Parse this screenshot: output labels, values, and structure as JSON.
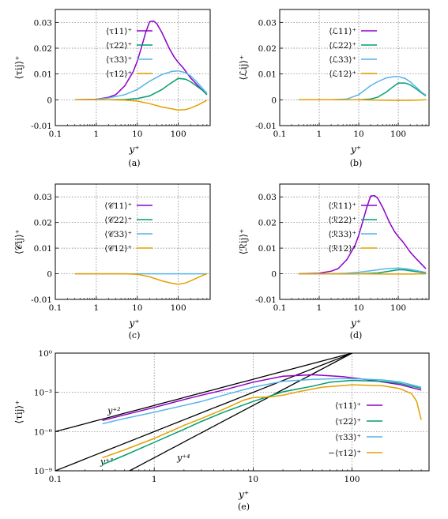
{
  "colors": {
    "c11": "#8e00c9",
    "c22": "#009e73",
    "c33": "#56b4e9",
    "c12": "#e69f00",
    "ref": "#000000"
  },
  "chart_data": [
    {
      "type": "line",
      "panel": "(a)",
      "xscale": "log",
      "xlim": [
        0.1,
        600
      ],
      "ylim": [
        -0.01,
        0.035
      ],
      "xticks": [
        "0.1",
        "1",
        "10",
        "100"
      ],
      "yticks": [
        "-0.01",
        "0",
        "0.01",
        "0.02",
        "0.03"
      ],
      "xlabel": "y⁺",
      "ylabel": "⟨τij⟩⁺",
      "series": [
        {
          "name": "⟨τ11⟩⁺",
          "x": [
            0.3,
            1,
            2,
            3,
            5,
            8,
            10,
            13,
            16,
            20,
            25,
            30,
            40,
            60,
            80,
            100,
            130,
            200,
            300,
            400,
            500
          ],
          "y": [
            0,
            0.0002,
            0.001,
            0.002,
            0.0055,
            0.011,
            0.015,
            0.021,
            0.026,
            0.0303,
            0.0305,
            0.0295,
            0.026,
            0.02,
            0.0165,
            0.0145,
            0.0125,
            0.0085,
            0.0055,
            0.0035,
            0.002
          ]
        },
        {
          "name": "⟨τ22⟩⁺",
          "x": [
            0.3,
            2,
            5,
            10,
            20,
            40,
            60,
            100,
            150,
            200,
            300,
            400,
            500
          ],
          "y": [
            0,
            0,
            0.0001,
            0.0005,
            0.0015,
            0.004,
            0.006,
            0.0083,
            0.008,
            0.007,
            0.005,
            0.0035,
            0.002
          ]
        },
        {
          "name": "⟨τ33⟩⁺",
          "x": [
            0.3,
            1,
            2,
            5,
            10,
            20,
            40,
            70,
            100,
            150,
            200,
            300,
            400,
            500
          ],
          "y": [
            0,
            0.0002,
            0.0007,
            0.002,
            0.004,
            0.0072,
            0.0098,
            0.011,
            0.0112,
            0.0105,
            0.0093,
            0.0065,
            0.0042,
            0.0025
          ]
        },
        {
          "name": "⟨τ12⟩⁺",
          "x": [
            0.3,
            2,
            5,
            10,
            20,
            40,
            70,
            100,
            150,
            200,
            300,
            400,
            500
          ],
          "y": [
            0,
            0,
            -0.0001,
            -0.0005,
            -0.0015,
            -0.0028,
            -0.0035,
            -0.004,
            -0.0038,
            -0.0032,
            -0.002,
            -0.001,
            -0.0002
          ]
        }
      ]
    },
    {
      "type": "line",
      "panel": "(b)",
      "xscale": "log",
      "xlim": [
        0.1,
        600
      ],
      "ylim": [
        -0.01,
        0.035
      ],
      "xticks": [
        "0.1",
        "1",
        "10",
        "100"
      ],
      "yticks": [
        "-0.01",
        "0",
        "0.01",
        "0.02",
        "0.03"
      ],
      "xlabel": "y⁺",
      "ylabel": "⟨ℒij⟩⁺",
      "series": [
        {
          "name": "⟨ℒ11⟩⁺",
          "x": [],
          "y": []
        },
        {
          "name": "⟨ℒ22⟩⁺",
          "x": [
            0.3,
            5,
            10,
            20,
            30,
            50,
            70,
            100,
            150,
            200,
            300,
            400,
            500
          ],
          "y": [
            0,
            0,
            0,
            0.0003,
            0.001,
            0.003,
            0.0048,
            0.0065,
            0.0065,
            0.0058,
            0.004,
            0.0025,
            0.0015
          ]
        },
        {
          "name": "⟨ℒ33⟩⁺",
          "x": [
            0.3,
            2,
            5,
            10,
            20,
            30,
            50,
            80,
            100,
            150,
            200,
            300,
            400,
            500
          ],
          "y": [
            0,
            0,
            0.0003,
            0.002,
            0.0055,
            0.007,
            0.0085,
            0.009,
            0.009,
            0.0082,
            0.007,
            0.0045,
            0.0028,
            0.0018
          ]
        },
        {
          "name": "⟨ℒ12⟩⁺",
          "x": [
            0.3,
            10,
            30,
            60,
            100,
            200,
            300,
            500
          ],
          "y": [
            0,
            0,
            -0.0001,
            -0.0002,
            -0.0002,
            -0.0002,
            -0.0001,
            0
          ]
        }
      ]
    },
    {
      "type": "line",
      "panel": "(c)",
      "xscale": "log",
      "xlim": [
        0.1,
        600
      ],
      "ylim": [
        -0.01,
        0.035
      ],
      "xticks": [
        "0.1",
        "1",
        "10",
        "100"
      ],
      "yticks": [
        "-0.01",
        "0",
        "0.01",
        "0.02",
        "0.03"
      ],
      "xlabel": "y⁺",
      "ylabel": "⟨𝒞ij⟩⁺",
      "series": [
        {
          "name": "⟨𝒞11⟩⁺",
          "x": [],
          "y": []
        },
        {
          "name": "⟨𝒞22⟩⁺",
          "x": [],
          "y": []
        },
        {
          "name": "⟨𝒞33⟩⁺",
          "x": [
            0.3,
            1,
            10,
            100,
            500
          ],
          "y": [
            0,
            0,
            0,
            0,
            0
          ]
        },
        {
          "name": "⟨𝒞12⟩⁺",
          "x": [
            0.3,
            5,
            10,
            20,
            40,
            70,
            100,
            150,
            200,
            300,
            400,
            500
          ],
          "y": [
            0,
            0,
            -0.0002,
            -0.0012,
            -0.0028,
            -0.0037,
            -0.0041,
            -0.0036,
            -0.0028,
            -0.0015,
            -0.0006,
            0
          ]
        }
      ]
    },
    {
      "type": "line",
      "panel": "(d)",
      "xscale": "log",
      "xlim": [
        0.1,
        600
      ],
      "ylim": [
        -0.01,
        0.035
      ],
      "xticks": [
        "0.1",
        "1",
        "10",
        "100"
      ],
      "yticks": [
        "-0.01",
        "0",
        "0.01",
        "0.02",
        "0.03"
      ],
      "xlabel": "y⁺",
      "ylabel": "⟨ℛij⟩⁺",
      "series": [
        {
          "name": "⟨ℛ11⟩⁺",
          "x": [
            0.3,
            1,
            2,
            3,
            5,
            8,
            10,
            13,
            16,
            20,
            25,
            30,
            40,
            60,
            80,
            100,
            130,
            200,
            300,
            400,
            500
          ],
          "y": [
            0,
            0.0002,
            0.001,
            0.002,
            0.0055,
            0.011,
            0.015,
            0.021,
            0.026,
            0.0303,
            0.0305,
            0.0295,
            0.026,
            0.02,
            0.0165,
            0.0145,
            0.0125,
            0.0085,
            0.0055,
            0.0035,
            0.002
          ]
        },
        {
          "name": "⟨ℛ22⟩⁺",
          "x": [
            0.3,
            10,
            30,
            60,
            100,
            150,
            200,
            300,
            500
          ],
          "y": [
            0,
            0,
            0.0003,
            0.001,
            0.0016,
            0.0015,
            0.0012,
            0.0008,
            0.0003
          ]
        },
        {
          "name": "⟨ℛ33⟩⁺",
          "x": [
            0.3,
            2,
            5,
            10,
            20,
            50,
            100,
            150,
            200,
            300,
            500
          ],
          "y": [
            0,
            0,
            0.0002,
            0.0006,
            0.0012,
            0.002,
            0.0022,
            0.002,
            0.0017,
            0.0012,
            0.0005
          ]
        },
        {
          "name": "⟨ℛ12⟩⁺",
          "x": [
            0.3,
            10,
            50,
            100,
            200,
            500
          ],
          "y": [
            0,
            0,
            -0.0001,
            -0.0001,
            -0.0001,
            0
          ]
        }
      ]
    },
    {
      "type": "line",
      "panel": "(e)",
      "xscale": "log",
      "yscale": "log",
      "xlim": [
        0.1,
        600
      ],
      "ylim": [
        1e-09,
        1
      ],
      "xticks": [
        "0.1",
        "1",
        "10",
        "100"
      ],
      "yticks": [
        "10⁻⁹",
        "10⁻⁶",
        "10⁻³",
        "10⁰"
      ],
      "xlabel": "y⁺",
      "ylabel": "⟨τij⟩⁺",
      "annotations": [
        "y⁺²",
        "y⁺³",
        "y⁺⁴"
      ],
      "reference_lines": [
        {
          "label": "y⁺²",
          "k": 0.0001,
          "p": 2
        },
        {
          "label": "y⁺³",
          "k": 1e-06,
          "p": 3
        },
        {
          "label": "y⁺⁴",
          "k": 1e-08,
          "p": 4
        }
      ],
      "series": [
        {
          "name": "⟨τ11⟩⁺",
          "x": [
            0.3,
            0.5,
            1,
            2,
            3,
            5,
            10,
            20,
            40,
            80,
            150,
            300,
            500
          ],
          "y": [
            7e-06,
            1.9e-05,
            7e-05,
            0.00028,
            0.0006,
            0.0015,
            0.006,
            0.017,
            0.022,
            0.016,
            0.009,
            0.004,
            0.0015
          ]
        },
        {
          "name": "⟨τ22⟩⁺",
          "x": [
            0.3,
            0.5,
            1,
            2,
            3,
            5,
            10,
            20,
            40,
            60,
            100,
            200,
            300,
            500
          ],
          "y": [
            3e-09,
            1.5e-08,
            1.5e-07,
            1.5e-06,
            6e-06,
            3e-05,
            0.0002,
            0.0011,
            0.003,
            0.006,
            0.0083,
            0.007,
            0.005,
            0.002
          ]
        },
        {
          "name": "⟨τ33⟩⁺",
          "x": [
            0.3,
            0.5,
            1,
            2,
            3,
            5,
            10,
            20,
            40,
            70,
            100,
            200,
            300,
            500
          ],
          "y": [
            4e-06,
            1e-05,
            3e-05,
            0.0001,
            0.0002,
            0.0006,
            0.0025,
            0.007,
            0.0098,
            0.011,
            0.011,
            0.009,
            0.0065,
            0.0025
          ]
        },
        {
          "name": "−⟨τ12⟩⁺",
          "x": [
            0.3,
            0.5,
            1,
            2,
            3,
            5,
            8,
            10,
            15,
            20,
            30,
            50,
            100,
            200,
            300,
            400,
            450,
            500
          ],
          "y": [
            1e-08,
            4e-08,
            3e-07,
            3e-06,
            1e-05,
            5e-05,
            0.00025,
            0.0004,
            0.00045,
            0.0006,
            0.0012,
            0.0025,
            0.0038,
            0.0032,
            0.002,
            0.0008,
            0.0002,
            8e-06
          ]
        }
      ]
    }
  ]
}
